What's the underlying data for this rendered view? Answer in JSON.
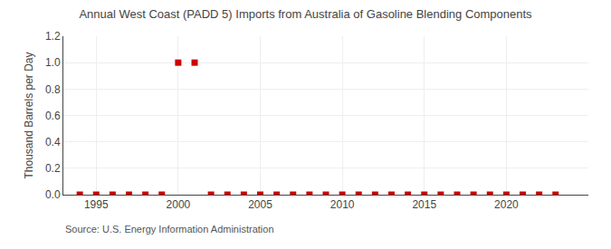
{
  "chart_data": {
    "type": "scatter",
    "title": "Annual West Coast (PADD 5) Imports from Australia of Gasoline Blending Components",
    "ylabel": "Thousand Barrels per Day",
    "annotations": [
      "Source: U.S. Energy Information Administration"
    ],
    "x": [
      1994,
      1995,
      1996,
      1997,
      1998,
      1999,
      2000,
      2001,
      2002,
      2003,
      2004,
      2005,
      2006,
      2007,
      2008,
      2009,
      2010,
      2011,
      2012,
      2013,
      2014,
      2015,
      2016,
      2017,
      2018,
      2019,
      2020,
      2021,
      2022,
      2023
    ],
    "values": [
      0.0,
      0.0,
      0.0,
      0.0,
      0.0,
      0.0,
      1.0,
      1.0,
      0.0,
      0.0,
      0.0,
      0.0,
      0.0,
      0.0,
      0.0,
      0.0,
      0.0,
      0.0,
      0.0,
      0.0,
      0.0,
      0.0,
      0.0,
      0.0,
      0.0,
      0.0,
      0.0,
      0.0,
      0.0,
      0.0
    ],
    "color": "#cc0000",
    "marker": "square",
    "xlim": [
      1993,
      2025
    ],
    "xticks": [
      1995,
      2000,
      2005,
      2010,
      2015,
      2020
    ],
    "ylim": [
      0.0,
      1.2
    ],
    "yticks": [
      {
        "value": 0.0,
        "label": "0.0"
      },
      0.2,
      0.4,
      0.6,
      0.8,
      {
        "value": 1.0,
        "label": "1.0"
      },
      1.2
    ],
    "grid": true
  }
}
